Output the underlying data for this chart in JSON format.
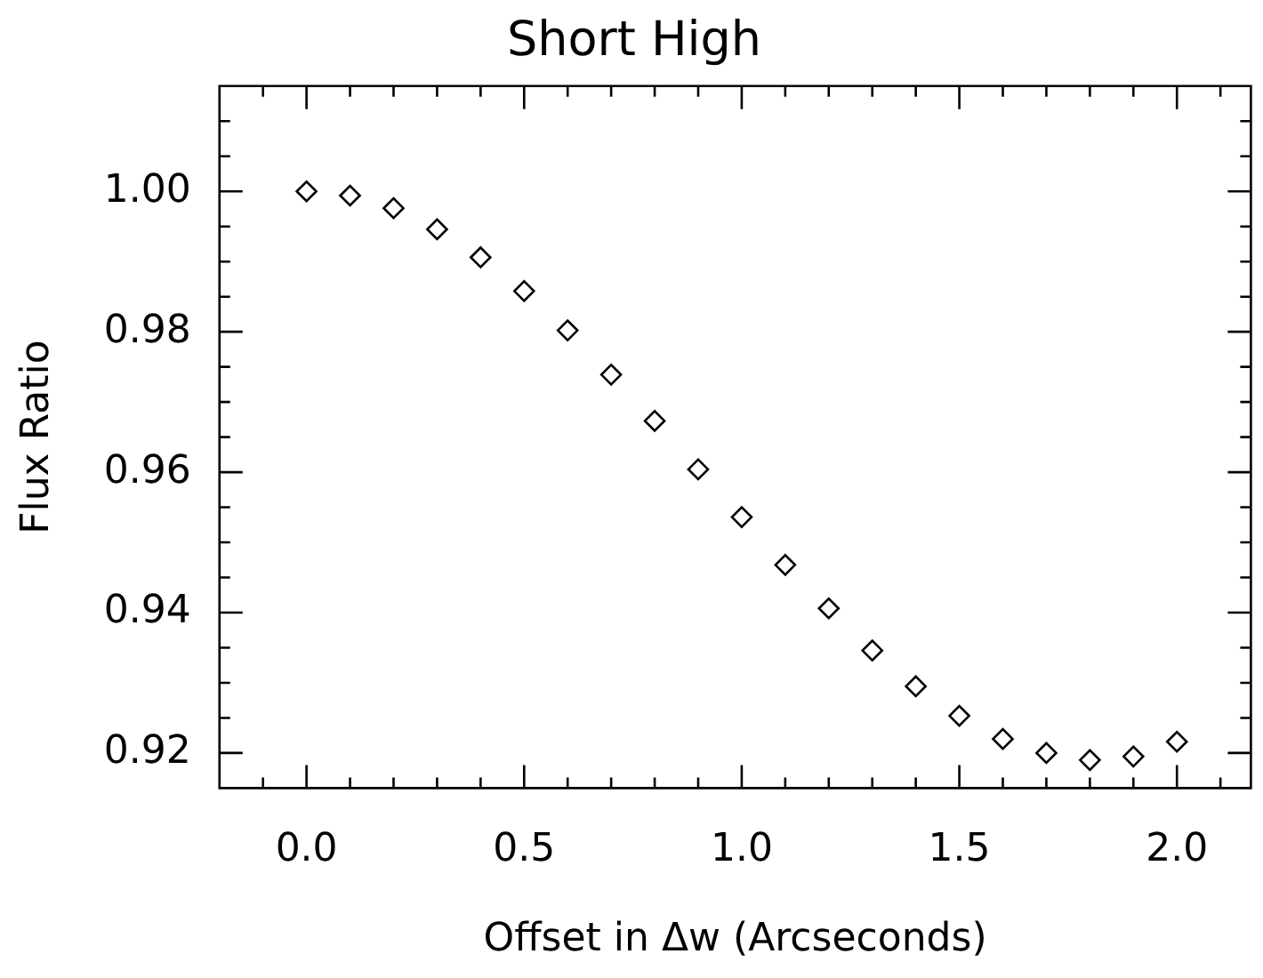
{
  "chart_data": {
    "type": "scatter",
    "title": "Short High",
    "xlabel": "Offset in Δw (Arcseconds)",
    "ylabel": "Flux Ratio",
    "x": [
      0.0,
      0.1,
      0.2,
      0.3,
      0.4,
      0.5,
      0.6,
      0.7,
      0.8,
      0.9,
      1.0,
      1.1,
      1.2,
      1.3,
      1.4,
      1.5,
      1.6,
      1.7,
      1.8,
      1.9,
      2.0
    ],
    "series": [
      {
        "color": "#000000",
        "values": [
          1.0,
          0.9994,
          0.9976,
          0.9946,
          0.9906,
          0.9858,
          0.9802,
          0.9739,
          0.9673,
          0.9604,
          0.9536,
          0.9468,
          0.9406,
          0.9346,
          0.9295,
          0.9253,
          0.922,
          0.92,
          0.919,
          0.9195,
          0.9216
        ]
      }
    ],
    "xlim": [
      -0.2,
      2.17
    ],
    "ylim": [
      0.915,
      1.015
    ],
    "xticks": [
      {
        "value": -0.1,
        "label": null
      },
      {
        "value": 0,
        "label": "0.0"
      },
      {
        "value": 0.1,
        "label": null
      },
      {
        "value": 0.2,
        "label": null
      },
      {
        "value": 0.3,
        "label": null
      },
      {
        "value": 0.4,
        "label": null
      },
      {
        "value": 0.5,
        "label": "0.5"
      },
      {
        "value": 0.6,
        "label": null
      },
      {
        "value": 0.7,
        "label": null
      },
      {
        "value": 0.8,
        "label": null
      },
      {
        "value": 0.9,
        "label": null
      },
      {
        "value": 1.0,
        "label": "1.0"
      },
      {
        "value": 1.1,
        "label": null
      },
      {
        "value": 1.2,
        "label": null
      },
      {
        "value": 1.3,
        "label": null
      },
      {
        "value": 1.4,
        "label": null
      },
      {
        "value": 1.5,
        "label": "1.5"
      },
      {
        "value": 1.6,
        "label": null
      },
      {
        "value": 1.7,
        "label": null
      },
      {
        "value": 1.8,
        "label": null
      },
      {
        "value": 1.9,
        "label": null
      },
      {
        "value": 2.0,
        "label": "2.0"
      },
      {
        "value": 2.1,
        "label": null
      }
    ],
    "yticks": [
      {
        "value": 0.92,
        "label": "0.92"
      },
      {
        "value": 0.925,
        "label": null
      },
      {
        "value": 0.93,
        "label": null
      },
      {
        "value": 0.935,
        "label": null
      },
      {
        "value": 0.94,
        "label": "0.94"
      },
      {
        "value": 0.945,
        "label": null
      },
      {
        "value": 0.95,
        "label": null
      },
      {
        "value": 0.955,
        "label": null
      },
      {
        "value": 0.96,
        "label": "0.96"
      },
      {
        "value": 0.965,
        "label": null
      },
      {
        "value": 0.97,
        "label": null
      },
      {
        "value": 0.975,
        "label": null
      },
      {
        "value": 0.98,
        "label": "0.98"
      },
      {
        "value": 0.985,
        "label": null
      },
      {
        "value": 0.99,
        "label": null
      },
      {
        "value": 0.995,
        "label": null
      },
      {
        "value": 1.0,
        "label": "1.00"
      },
      {
        "value": 1.005,
        "label": null
      },
      {
        "value": 1.01,
        "label": null
      }
    ],
    "grid": false,
    "legend": false,
    "marker": "diamond"
  }
}
